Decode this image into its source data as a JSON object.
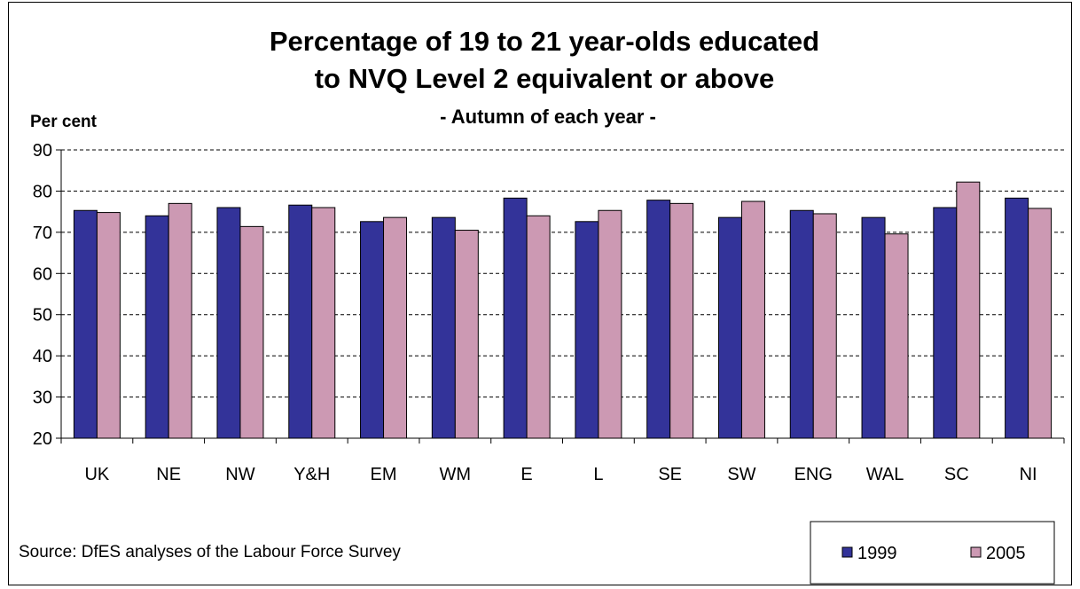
{
  "chart_data": {
    "type": "bar",
    "title_line1": "Percentage of 19 to 21 year-olds educated",
    "title_line2": "to NVQ Level 2 equivalent or above",
    "subtitle": "- Autumn of each year -",
    "ylabel": "Per cent",
    "ylim": [
      20,
      90
    ],
    "yticks": [
      "20",
      "30",
      "40",
      "50",
      "60",
      "70",
      "80",
      "90"
    ],
    "grid": "horizontal dashed",
    "categories": [
      "UK",
      "NE",
      "NW",
      "Y&H",
      "EM",
      "WM",
      "E",
      "L",
      "SE",
      "SW",
      "ENG",
      "WAL",
      "SC",
      "NI"
    ],
    "series": [
      {
        "name": "1999",
        "color": "#333399",
        "values": [
          75.3,
          74.0,
          76.0,
          76.6,
          72.6,
          73.6,
          78.3,
          72.6,
          77.8,
          73.6,
          75.3,
          73.6,
          76.0,
          78.3
        ]
      },
      {
        "name": "2005",
        "color": "#CC99B3",
        "values": [
          74.8,
          77.0,
          71.4,
          76.0,
          73.6,
          70.5,
          74.0,
          75.3,
          77.0,
          77.5,
          74.5,
          69.6,
          82.2,
          75.8
        ]
      }
    ],
    "legend_position": "bottom-right",
    "source": "Source: DfES analyses of the Labour Force Survey"
  }
}
